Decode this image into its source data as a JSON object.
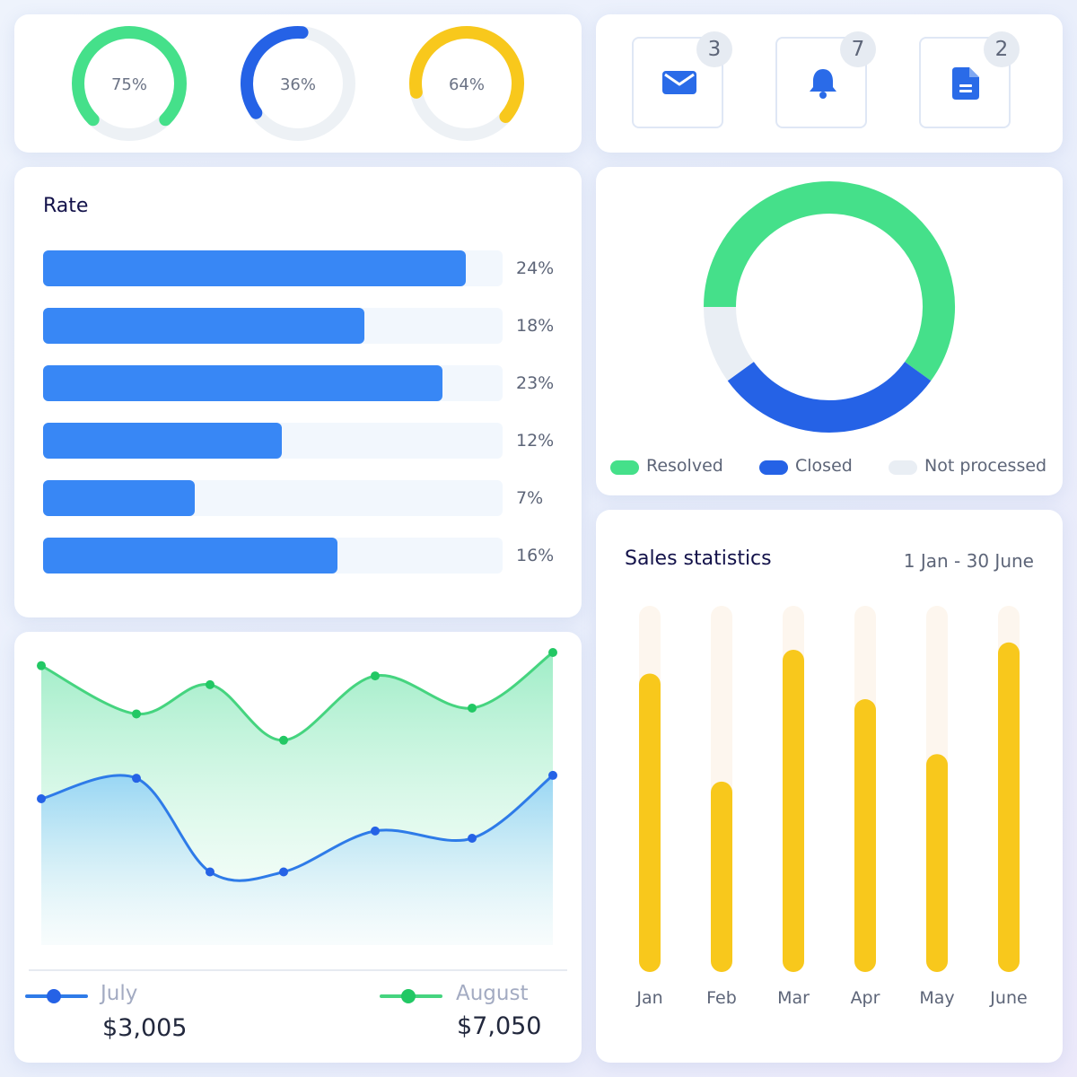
{
  "gauges": [
    {
      "label": "75%",
      "value": 75,
      "color": "#45e08a"
    },
    {
      "label": "36%",
      "value": 36,
      "color": "#2562e6"
    },
    {
      "label": "64%",
      "value": 64,
      "color": "#f8c81c"
    }
  ],
  "notifications": [
    {
      "icon": "mail-icon",
      "count": "3"
    },
    {
      "icon": "bell-icon",
      "count": "7"
    },
    {
      "icon": "document-icon",
      "count": "2"
    }
  ],
  "rate": {
    "title": "Rate",
    "bars": [
      {
        "label": "24%",
        "fill": 0.92
      },
      {
        "label": "18%",
        "fill": 0.7
      },
      {
        "label": "23%",
        "fill": 0.87
      },
      {
        "label": "12%",
        "fill": 0.52
      },
      {
        "label": "7%",
        "fill": 0.33
      },
      {
        "label": "16%",
        "fill": 0.64
      }
    ]
  },
  "status_donut": {
    "legend": [
      {
        "label": "Resolved",
        "color": "#45e08a"
      },
      {
        "label": "Closed",
        "color": "#2562e6"
      },
      {
        "label": "Not processed",
        "color": "#e9eef4"
      }
    ]
  },
  "monthly_line": {
    "series": [
      {
        "name": "July",
        "value": "$3,005",
        "color": "#2e7be8"
      },
      {
        "name": "August",
        "value": "$7,050",
        "color": "#45d47f"
      }
    ]
  },
  "sales": {
    "title": "Sales statistics",
    "period": "1 Jan - 30 June"
  },
  "chart_data": [
    {
      "type": "pie",
      "categories": [
        "Resolved",
        "Closed",
        "Not processed"
      ],
      "values": [
        60,
        30,
        10
      ]
    },
    {
      "type": "area",
      "series": [
        {
          "name": "July",
          "values": [
            50,
            57,
            25,
            25,
            39,
            36.5,
            58
          ]
        },
        {
          "name": "August",
          "values": [
            95.5,
            79,
            89,
            70,
            92,
            81,
            100
          ]
        }
      ],
      "ylim": [
        0,
        100
      ]
    },
    {
      "type": "bar",
      "title": "Sales statistics",
      "categories": [
        "Jan",
        "Feb",
        "Mar",
        "Apr",
        "May",
        "June"
      ],
      "values": [
        81.5,
        52,
        88,
        74.5,
        59.5,
        90
      ],
      "ylim": [
        0,
        100
      ]
    }
  ]
}
